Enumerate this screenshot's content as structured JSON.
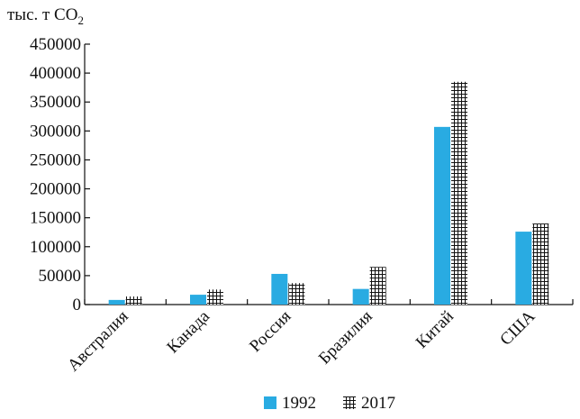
{
  "chart_data": {
    "type": "bar",
    "title": "",
    "ylabel": {
      "main": "тыс. т СО",
      "subscript": "2"
    },
    "xlabel": "",
    "categories": [
      "Австралия",
      "Канада",
      "Россия",
      "Бразилия",
      "Китай",
      "США"
    ],
    "series": [
      {
        "name": "1992",
        "values": [
          8000,
          17000,
          53000,
          27000,
          307000,
          126000
        ]
      },
      {
        "name": "2017",
        "values": [
          14000,
          26000,
          37000,
          65000,
          385000,
          140000
        ]
      }
    ],
    "ylim": [
      0,
      450000
    ],
    "yticks": [
      0,
      50000,
      100000,
      150000,
      200000,
      250000,
      300000,
      350000,
      400000,
      450000
    ],
    "ytick_labels": [
      "0",
      "50000",
      "100000",
      "150000",
      "200000",
      "250000",
      "300000",
      "350000",
      "400000",
      "450000"
    ],
    "grid": false,
    "legend_position": "bottom",
    "colors": {
      "series_1992": "#29abe2",
      "series_2017_hatch": "#111111",
      "axis": "#111111"
    }
  }
}
